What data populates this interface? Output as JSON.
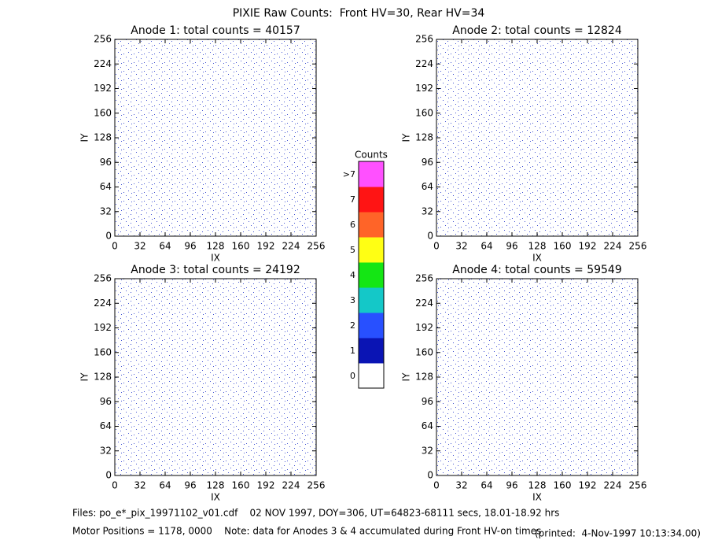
{
  "title": "PIXIE Raw Counts:  Front HV=30, Rear HV=34",
  "chart_data": [
    {
      "type": "heatmap",
      "title": "Anode 1: total counts = 40157",
      "xlabel": "IX",
      "ylabel": "IY",
      "xlim": [
        0,
        256
      ],
      "ylim": [
        0,
        256
      ],
      "xticks": [
        0,
        32,
        64,
        96,
        128,
        160,
        192,
        224,
        256
      ],
      "yticks": [
        0,
        32,
        64,
        96,
        128,
        160,
        192,
        224,
        256
      ]
    },
    {
      "type": "heatmap",
      "title": "Anode 2: total counts = 12824",
      "xlabel": "IX",
      "ylabel": "IY",
      "xlim": [
        0,
        256
      ],
      "ylim": [
        0,
        256
      ],
      "xticks": [
        0,
        32,
        64,
        96,
        128,
        160,
        192,
        224,
        256
      ],
      "yticks": [
        0,
        32,
        64,
        96,
        128,
        160,
        192,
        224,
        256
      ]
    },
    {
      "type": "heatmap",
      "title": "Anode 3: total counts = 24192",
      "xlabel": "IX",
      "ylabel": "IY",
      "xlim": [
        0,
        256
      ],
      "ylim": [
        0,
        256
      ],
      "xticks": [
        0,
        32,
        64,
        96,
        128,
        160,
        192,
        224,
        256
      ],
      "yticks": [
        0,
        32,
        64,
        96,
        128,
        160,
        192,
        224,
        256
      ]
    },
    {
      "type": "heatmap",
      "title": "Anode 4: total counts = 59549",
      "xlabel": "IX",
      "ylabel": "IY",
      "xlim": [
        0,
        256
      ],
      "ylim": [
        0,
        256
      ],
      "xticks": [
        0,
        32,
        64,
        96,
        128,
        160,
        192,
        224,
        256
      ],
      "yticks": [
        0,
        32,
        64,
        96,
        128,
        160,
        192,
        224,
        256
      ]
    }
  ],
  "colorbar": {
    "title": "Counts",
    "labels": [
      "0",
      "1",
      "2",
      "3",
      "4",
      "5",
      "6",
      "7",
      ">7"
    ],
    "colors": [
      "#ffffff",
      "#0a14b4",
      "#2850ff",
      "#14c8c8",
      "#14e614",
      "#ffff14",
      "#ff6428",
      "#ff1414",
      "#ff50ff"
    ]
  },
  "footer": {
    "files": "Files: po_e*_pix_19971102_v01.cdf    02 NOV 1997, DOY=306, UT=64823-68111 secs, 18.01-18.92 hrs",
    "motor": "Motor Positions = 1178, 0000    Note: data for Anodes 3 & 4 accumulated during Front HV-on times",
    "printed": "(printed:  4-Nov-1997 10:13:34.00)"
  }
}
